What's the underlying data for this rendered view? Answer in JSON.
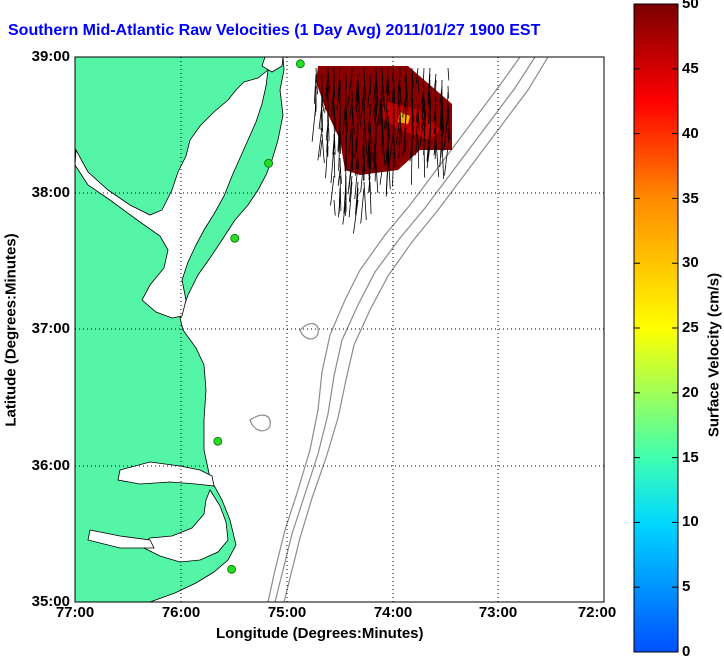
{
  "title": "Southern Mid-Atlantic Raw Velocities (1 Day Avg) 2011/01/27 1900 EST",
  "xlabel": "Longitude (Degrees:Minutes)",
  "ylabel": "Latitude (Degrees:Minutes)",
  "colorbar": {
    "label": "Surface Velocity (cm/s)",
    "ticks": [
      "0",
      "5",
      "10",
      "15",
      "20",
      "25",
      "30",
      "35",
      "40",
      "45",
      "50"
    ],
    "min": 0,
    "max": 50
  },
  "axes": {
    "xticks": [
      "77:00",
      "76:00",
      "75:00",
      "74:00",
      "73:00",
      "72:00"
    ],
    "yticks": [
      "39:00",
      "38:00",
      "37:00",
      "36:00",
      "35:00"
    ],
    "xlim": [
      -77,
      -72
    ],
    "ylim": [
      35,
      39
    ],
    "grid": "dotted"
  },
  "colors": {
    "land": "#55f5a8",
    "bathymetry": "#8c8c8c",
    "title": "#0000ff",
    "station": "#22dd22",
    "vectors": "#000000"
  },
  "stations": [
    {
      "lon": -74.87,
      "lat": 38.95
    },
    {
      "lon": -75.17,
      "lat": 38.22
    },
    {
      "lon": -75.49,
      "lat": 37.67
    },
    {
      "lon": -75.65,
      "lat": 36.18
    },
    {
      "lon": -75.52,
      "lat": 35.24
    }
  ]
}
